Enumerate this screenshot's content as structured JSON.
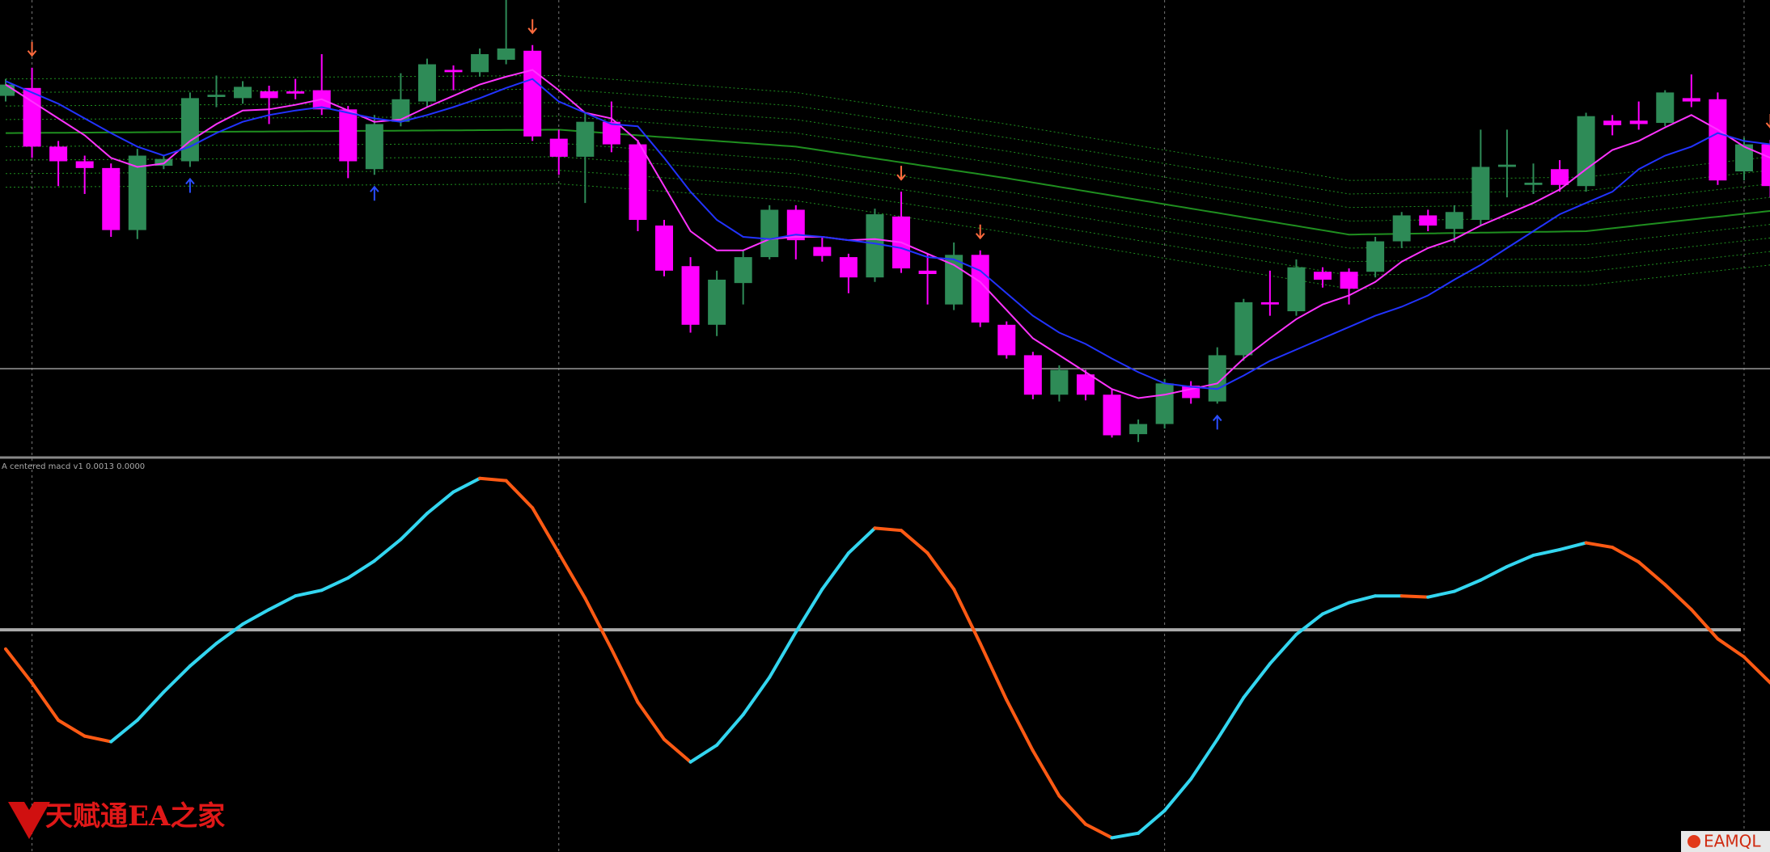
{
  "chart_data": [
    {
      "type": "candlestick",
      "up_color": "#2e8b57",
      "down_color": "#ff00ff",
      "ylim": [
        -5,
        400
      ],
      "open": [
        315,
        322,
        270,
        257,
        251,
        196,
        253,
        257,
        314,
        313,
        319,
        319,
        320,
        303,
        250,
        292,
        310,
        338,
        336,
        347,
        355,
        277,
        261,
        292,
        272,
        200,
        164,
        112,
        149,
        172,
        214,
        181,
        172,
        154,
        208,
        160,
        130,
        174,
        112,
        85,
        50,
        68,
        50,
        15,
        24,
        58,
        44,
        85,
        132,
        124,
        159,
        159,
        159,
        186,
        209,
        197,
        205,
        252,
        236,
        250,
        235,
        293,
        293,
        291,
        313,
        312,
        248,
        272
      ],
      "high": [
        330,
        340,
        275,
        262,
        255,
        268,
        262,
        318,
        333,
        328,
        324,
        330,
        352,
        306,
        298,
        335,
        348,
        342,
        357,
        400,
        360,
        285,
        300,
        310,
        276,
        205,
        172,
        160,
        178,
        218,
        218,
        190,
        175,
        215,
        230,
        175,
        185,
        178,
        115,
        88,
        76,
        72,
        55,
        28,
        64,
        62,
        92,
        135,
        160,
        170,
        163,
        162,
        190,
        212,
        214,
        218,
        285,
        285,
        255,
        258,
        300,
        298,
        310,
        320,
        334,
        318,
        278,
        276
      ],
      "low": [
        310,
        260,
        235,
        228,
        190,
        188,
        250,
        252,
        305,
        308,
        290,
        312,
        298,
        242,
        245,
        288,
        305,
        320,
        332,
        343,
        275,
        245,
        220,
        265,
        195,
        155,
        105,
        102,
        130,
        170,
        170,
        168,
        140,
        150,
        158,
        130,
        125,
        110,
        82,
        46,
        44,
        45,
        12,
        8,
        20,
        42,
        42,
        80,
        120,
        120,
        145,
        130,
        154,
        180,
        195,
        185,
        200,
        225,
        228,
        230,
        230,
        280,
        285,
        288,
        305,
        236,
        240,
        225
      ],
      "close": [
        325,
        270,
        257,
        251,
        196,
        262,
        259,
        313,
        316,
        323,
        313,
        317,
        303,
        257,
        290,
        312,
        343,
        336,
        352,
        357,
        279,
        261,
        292,
        272,
        205,
        160,
        112,
        152,
        172,
        214,
        187,
        173,
        154,
        210,
        162,
        157,
        174,
        114,
        85,
        50,
        72,
        50,
        14,
        24,
        60,
        47,
        85,
        132,
        130,
        163,
        152,
        144,
        186,
        209,
        200,
        212,
        252,
        254,
        238,
        236,
        297,
        289,
        290,
        318,
        310,
        240,
        272,
        235
      ],
      "series": [
        {
          "color": "#ff33ff",
          "values": [
            325,
            310,
            295,
            280,
            260,
            252,
            255,
            275,
            290,
            302,
            303,
            307,
            312,
            302,
            292,
            294,
            305,
            315,
            325,
            332,
            338,
            320,
            300,
            295,
            275,
            235,
            195,
            178,
            178,
            188,
            190,
            190,
            187,
            188,
            185,
            175,
            165,
            150,
            125,
            100,
            85,
            70,
            55,
            47,
            50,
            55,
            60,
            82,
            100,
            117,
            130,
            138,
            150,
            168,
            180,
            188,
            200,
            210,
            220,
            232,
            250,
            267,
            275,
            287,
            298,
            285,
            270,
            260
          ]
        },
        {
          "color": "#2233ff",
          "values": [
            328,
            318,
            308,
            295,
            282,
            270,
            262,
            270,
            282,
            292,
            298,
            302,
            305,
            300,
            295,
            292,
            298,
            305,
            313,
            322,
            330,
            310,
            300,
            290,
            288,
            260,
            230,
            205,
            190,
            188,
            192,
            190,
            187,
            184,
            180,
            172,
            170,
            160,
            140,
            120,
            105,
            95,
            82,
            70,
            60,
            57,
            55,
            67,
            80,
            90,
            100,
            110,
            120,
            128,
            138,
            152,
            165,
            180,
            195,
            210,
            220,
            230,
            250,
            262,
            270,
            282,
            275,
            272
          ]
        }
      ],
      "band": {
        "color": "#1f8f1f",
        "x": [
          0,
          21,
          30,
          38,
          51,
          60,
          67
        ],
        "values": [
          282,
          285,
          270,
          242,
          192,
          195,
          213
        ],
        "offsets": [
          12,
          24,
          36,
          48
        ]
      },
      "level": 73,
      "vlines": [
        1,
        21,
        44,
        66
      ],
      "signals": {
        "sell": [
          1,
          20,
          34,
          37,
          67
        ],
        "buy": [
          7,
          14,
          46
        ],
        "sell_color": "#ff6a3d",
        "buy_color": "#2a4dff"
      }
    },
    {
      "type": "macd",
      "label": "A centered macd v1 0.0013 0.0000",
      "ylim": [
        -0.00175,
        0.0013
      ],
      "level": 0,
      "rise_color": "#33d6f0",
      "fall_color": "#ff5a14",
      "values": [
        -0.000151,
        -0.000418,
        -0.000712,
        -0.000837,
        -0.000881,
        -0.000712,
        -0.00049,
        -0.000285,
        -0.000107,
        4.5e-05,
        0.00016,
        0.000267,
        0.000312,
        0.000409,
        0.000543,
        0.000712,
        0.000917,
        0.001086,
        0.001193,
        0.001175,
        0.000961,
        0.000605,
        0.000249,
        -0.000151,
        -0.00057,
        -0.000863,
        -0.001041,
        -0.000908,
        -0.000668,
        -0.000374,
        -1.8e-05,
        0.00032,
        0.000605,
        0.000801,
        0.000783,
        0.000605,
        0.00032,
        -0.000107,
        -0.000552,
        -0.000952,
        -0.001308,
        -0.001531,
        -0.001638,
        -0.001602,
        -0.001424,
        -0.001175,
        -0.000863,
        -0.000534,
        -0.000267,
        -3.6e-05,
        0.000125,
        0.000214,
        0.000267,
        0.000267,
        0.000258,
        0.000303,
        0.000392,
        0.000498,
        0.000587,
        0.000632,
        0.000685,
        0.00065,
        0.000534,
        0.000356,
        0.00016,
        -7.1e-05,
        -0.000214,
        -0.000418
      ]
    }
  ],
  "watermark": "天赋通EA之家",
  "logo": "EAMQL"
}
